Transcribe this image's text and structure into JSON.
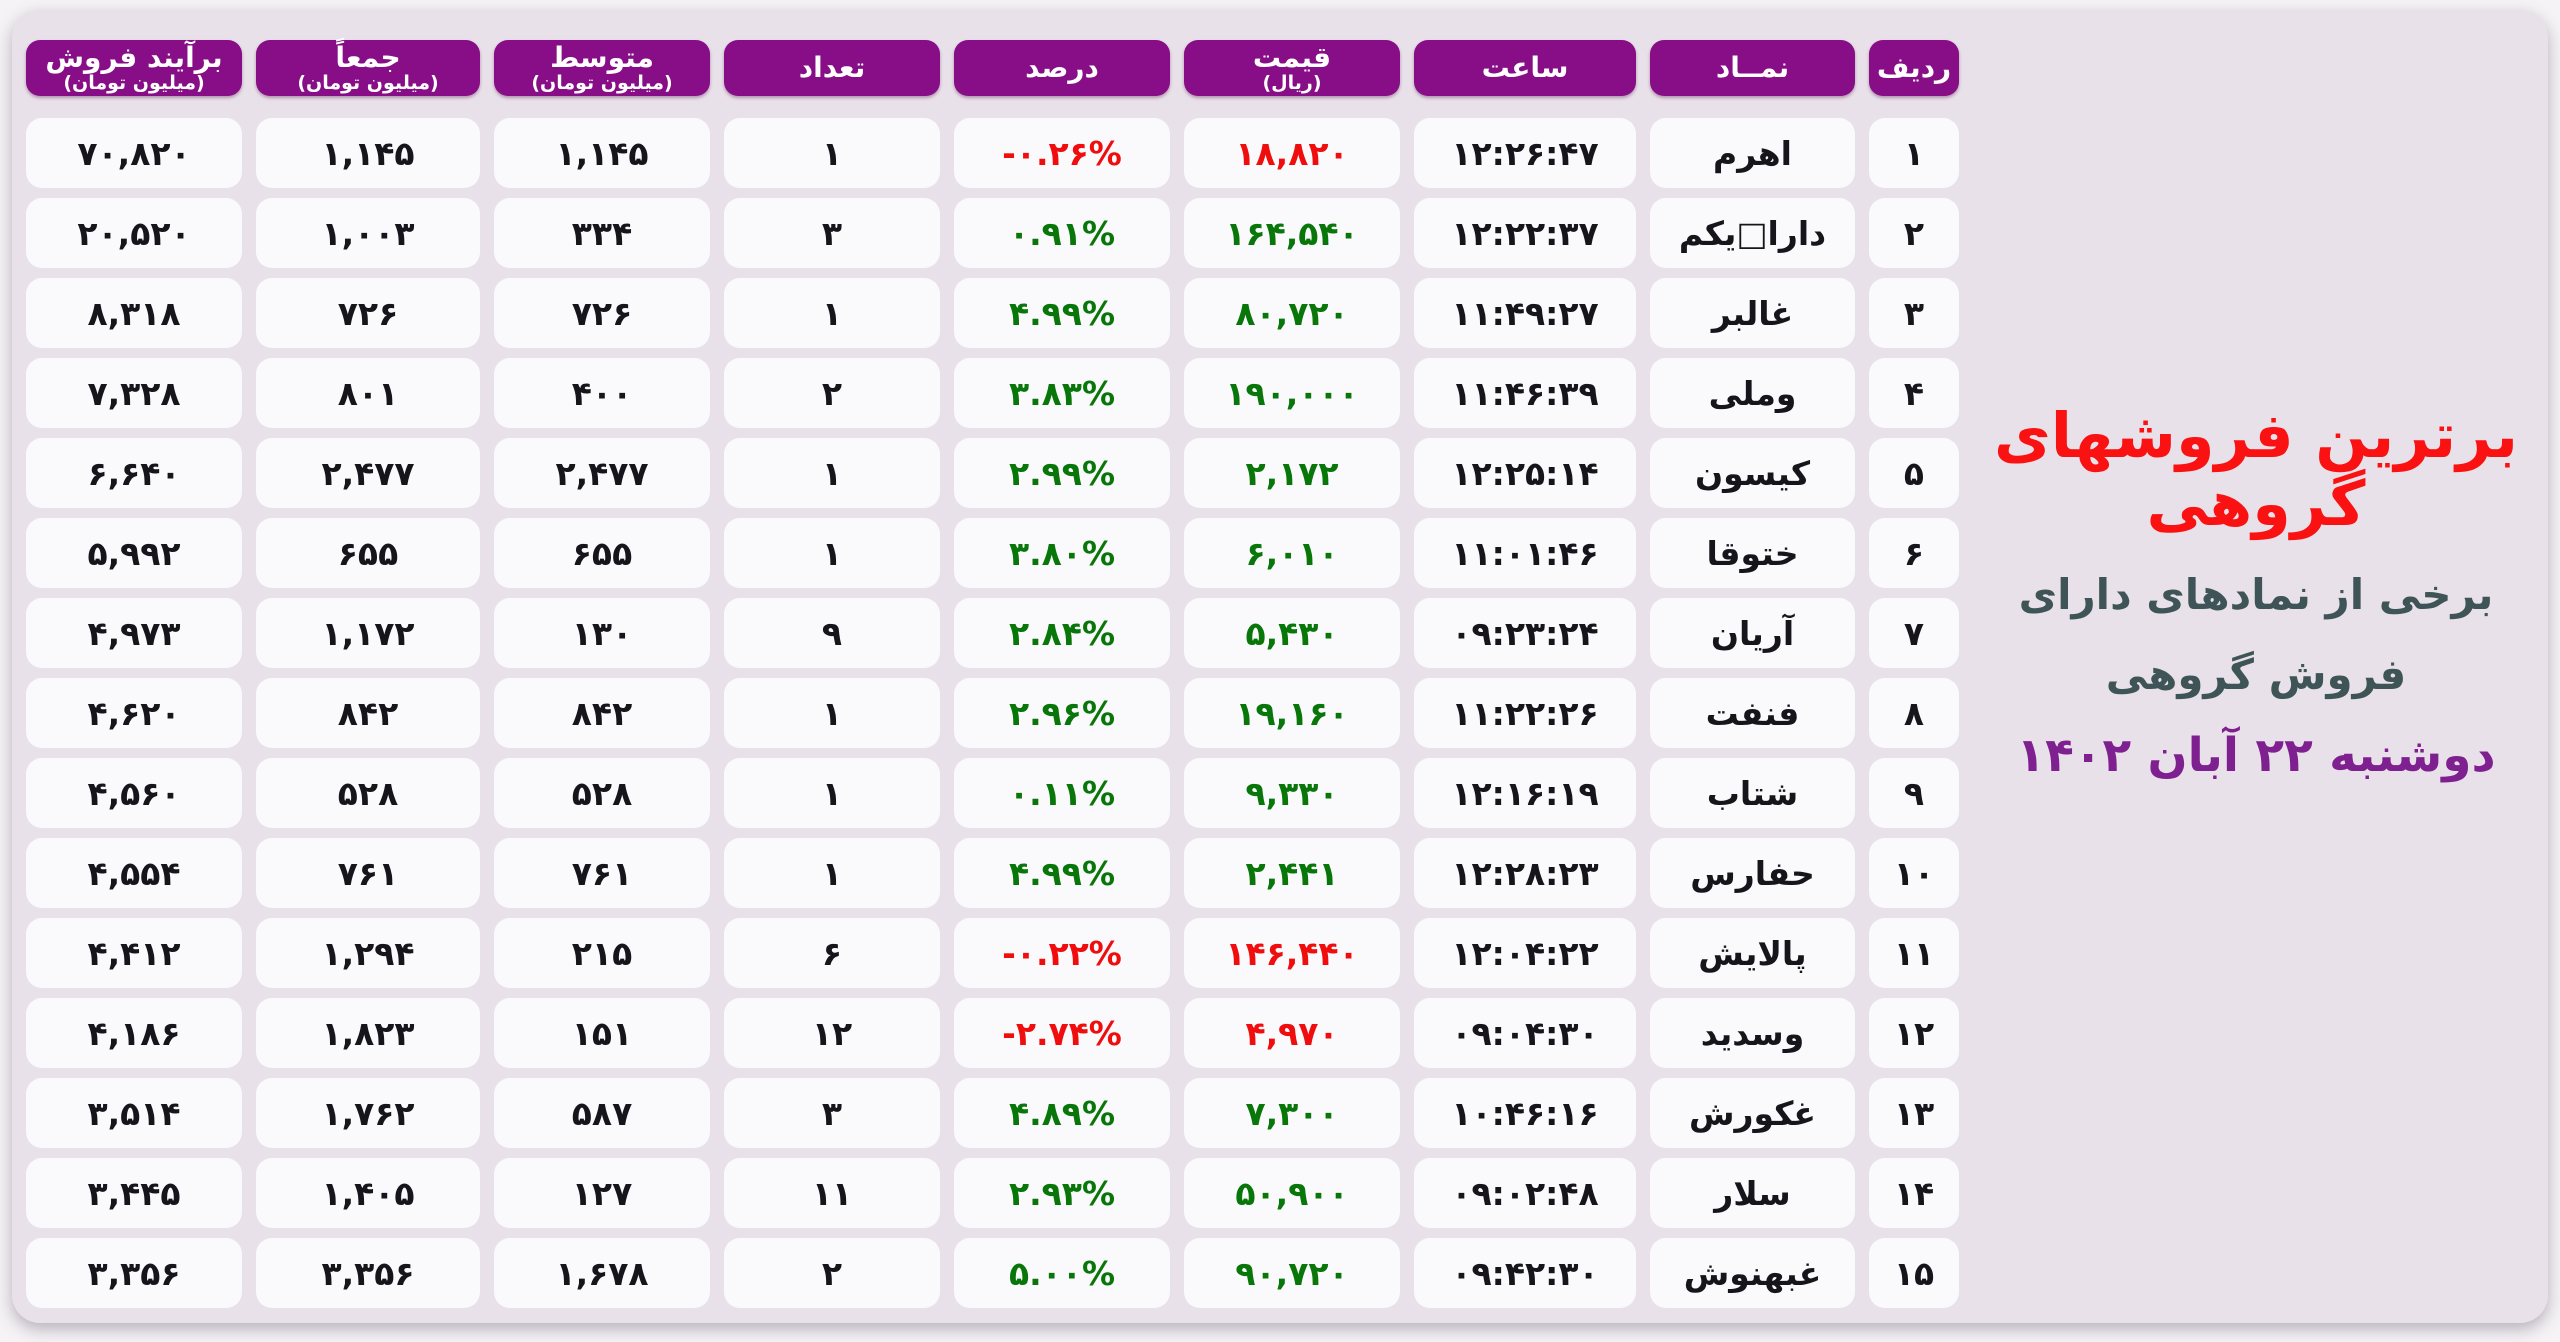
{
  "title_panel": {
    "title": "برترین فروشهای گروهی",
    "subtitle_line1": "برخی از نمادهای دارای",
    "subtitle_line2": "فروش گروهی",
    "date": "دوشنبه ۲۲ آبان ۱۴۰۲"
  },
  "chart_data": {
    "type": "table",
    "title": "برترین فروشهای گروهی",
    "columns": [
      {
        "key": "rank",
        "label": "ردیف",
        "sub": ""
      },
      {
        "key": "symbol",
        "label": "نمــاد",
        "sub": ""
      },
      {
        "key": "time",
        "label": "ساعت",
        "sub": ""
      },
      {
        "key": "price",
        "label": "قیمت",
        "sub": "(ریال)"
      },
      {
        "key": "percent",
        "label": "درصد",
        "sub": ""
      },
      {
        "key": "count",
        "label": "تعداد",
        "sub": ""
      },
      {
        "key": "average",
        "label": "متوسط",
        "sub": "(میلیون تومان)"
      },
      {
        "key": "sum",
        "label": "جمعاً",
        "sub": "(میلیون تومان)"
      },
      {
        "key": "proceeds",
        "label": "برآیند فروش",
        "sub": "(میلیون تومان)"
      }
    ],
    "rows": [
      {
        "rank": 1,
        "rank_fa": "۱",
        "symbol": "اهرم",
        "time_fa": "۱۲:۲۶:۴۷",
        "price": 18820,
        "price_fa": "۱۸,۸۲۰",
        "percent": -0.26,
        "percent_fa": "-۰.۲۶%",
        "count": 1,
        "count_fa": "۱",
        "average": 1145,
        "avg_fa": "۱,۱۴۵",
        "sum": 1145,
        "total_fa": "۱,۱۴۵",
        "proceeds": 70820,
        "proceeds_fa": "۷۰,۸۲۰",
        "trend": "down"
      },
      {
        "rank": 2,
        "rank_fa": "۲",
        "symbol": "دارا□یکم",
        "time_fa": "۱۲:۲۲:۳۷",
        "price": 164540,
        "price_fa": "۱۶۴,۵۴۰",
        "percent": 0.91,
        "percent_fa": "۰.۹۱%",
        "count": 3,
        "count_fa": "۳",
        "average": 334,
        "avg_fa": "۳۳۴",
        "sum": 1003,
        "total_fa": "۱,۰۰۳",
        "proceeds": 20520,
        "proceeds_fa": "۲۰,۵۲۰",
        "trend": "up"
      },
      {
        "rank": 3,
        "rank_fa": "۳",
        "symbol": "غالبر",
        "time_fa": "۱۱:۴۹:۲۷",
        "price": 80720,
        "price_fa": "۸۰,۷۲۰",
        "percent": 4.99,
        "percent_fa": "۴.۹۹%",
        "count": 1,
        "count_fa": "۱",
        "average": 726,
        "avg_fa": "۷۲۶",
        "sum": 726,
        "total_fa": "۷۲۶",
        "proceeds": 8318,
        "proceeds_fa": "۸,۳۱۸",
        "trend": "up"
      },
      {
        "rank": 4,
        "rank_fa": "۴",
        "symbol": "وملی",
        "time_fa": "۱۱:۴۶:۳۹",
        "price": 190000,
        "price_fa": "۱۹۰,۰۰۰",
        "percent": 3.83,
        "percent_fa": "۳.۸۳%",
        "count": 2,
        "count_fa": "۲",
        "average": 400,
        "avg_fa": "۴۰۰",
        "sum": 801,
        "total_fa": "۸۰۱",
        "proceeds": 7328,
        "proceeds_fa": "۷,۳۲۸",
        "trend": "up"
      },
      {
        "rank": 5,
        "rank_fa": "۵",
        "symbol": "کیسون",
        "time_fa": "۱۲:۲۵:۱۴",
        "price": 2172,
        "price_fa": "۲,۱۷۲",
        "percent": 2.99,
        "percent_fa": "۲.۹۹%",
        "count": 1,
        "count_fa": "۱",
        "average": 2477,
        "avg_fa": "۲,۴۷۷",
        "sum": 2477,
        "total_fa": "۲,۴۷۷",
        "proceeds": 6640,
        "proceeds_fa": "۶,۶۴۰",
        "trend": "up"
      },
      {
        "rank": 6,
        "rank_fa": "۶",
        "symbol": "ختوقا",
        "time_fa": "۱۱:۰۱:۴۶",
        "price": 6010,
        "price_fa": "۶,۰۱۰",
        "percent": 3.8,
        "percent_fa": "۳.۸۰%",
        "count": 1,
        "count_fa": "۱",
        "average": 655,
        "avg_fa": "۶۵۵",
        "sum": 655,
        "total_fa": "۶۵۵",
        "proceeds": 5992,
        "proceeds_fa": "۵,۹۹۲",
        "trend": "up"
      },
      {
        "rank": 7,
        "rank_fa": "۷",
        "symbol": "آریان",
        "time_fa": "۰۹:۲۳:۲۴",
        "price": 5430,
        "price_fa": "۵,۴۳۰",
        "percent": 2.84,
        "percent_fa": "۲.۸۴%",
        "count": 9,
        "count_fa": "۹",
        "average": 130,
        "avg_fa": "۱۳۰",
        "sum": 1172,
        "total_fa": "۱,۱۷۲",
        "proceeds": 4973,
        "proceeds_fa": "۴,۹۷۳",
        "trend": "up"
      },
      {
        "rank": 8,
        "rank_fa": "۸",
        "symbol": "فنفت",
        "time_fa": "۱۱:۲۲:۲۶",
        "price": 19160,
        "price_fa": "۱۹,۱۶۰",
        "percent": 2.96,
        "percent_fa": "۲.۹۶%",
        "count": 1,
        "count_fa": "۱",
        "average": 842,
        "avg_fa": "۸۴۲",
        "sum": 842,
        "total_fa": "۸۴۲",
        "proceeds": 4620,
        "proceeds_fa": "۴,۶۲۰",
        "trend": "up"
      },
      {
        "rank": 9,
        "rank_fa": "۹",
        "symbol": "شتاب",
        "time_fa": "۱۲:۱۶:۱۹",
        "price": 9330,
        "price_fa": "۹,۳۳۰",
        "percent": 0.11,
        "percent_fa": "۰.۱۱%",
        "count": 1,
        "count_fa": "۱",
        "average": 528,
        "avg_fa": "۵۲۸",
        "sum": 528,
        "total_fa": "۵۲۸",
        "proceeds": 4560,
        "proceeds_fa": "۴,۵۶۰",
        "trend": "up"
      },
      {
        "rank": 10,
        "rank_fa": "۱۰",
        "symbol": "حفارس",
        "time_fa": "۱۲:۲۸:۲۳",
        "price": 2441,
        "price_fa": "۲,۴۴۱",
        "percent": 4.99,
        "percent_fa": "۴.۹۹%",
        "count": 1,
        "count_fa": "۱",
        "average": 761,
        "avg_fa": "۷۶۱",
        "sum": 761,
        "total_fa": "۷۶۱",
        "proceeds": 4554,
        "proceeds_fa": "۴,۵۵۴",
        "trend": "up"
      },
      {
        "rank": 11,
        "rank_fa": "۱۱",
        "symbol": "پالایش",
        "time_fa": "۱۲:۰۴:۲۲",
        "price": 146440,
        "price_fa": "۱۴۶,۴۴۰",
        "percent": -0.22,
        "percent_fa": "-۰.۲۲%",
        "count": 6,
        "count_fa": "۶",
        "average": 215,
        "avg_fa": "۲۱۵",
        "sum": 1294,
        "total_fa": "۱,۲۹۴",
        "proceeds": 4412,
        "proceeds_fa": "۴,۴۱۲",
        "trend": "down"
      },
      {
        "rank": 12,
        "rank_fa": "۱۲",
        "symbol": "وسدید",
        "time_fa": "۰۹:۰۴:۳۰",
        "price": 4970,
        "price_fa": "۴,۹۷۰",
        "percent": -2.74,
        "percent_fa": "-۲.۷۴%",
        "count": 12,
        "count_fa": "۱۲",
        "average": 151,
        "avg_fa": "۱۵۱",
        "sum": 1823,
        "total_fa": "۱,۸۲۳",
        "proceeds": 4186,
        "proceeds_fa": "۴,۱۸۶",
        "trend": "down"
      },
      {
        "rank": 13,
        "rank_fa": "۱۳",
        "symbol": "غکورش",
        "time_fa": "۱۰:۴۶:۱۶",
        "price": 7300,
        "price_fa": "۷,۳۰۰",
        "percent": 4.89,
        "percent_fa": "۴.۸۹%",
        "count": 3,
        "count_fa": "۳",
        "average": 587,
        "avg_fa": "۵۸۷",
        "sum": 1762,
        "total_fa": "۱,۷۶۲",
        "proceeds": 3514,
        "proceeds_fa": "۳,۵۱۴",
        "trend": "up"
      },
      {
        "rank": 14,
        "rank_fa": "۱۴",
        "symbol": "سلار",
        "time_fa": "۰۹:۰۲:۴۸",
        "price": 50900,
        "price_fa": "۵۰,۹۰۰",
        "percent": 2.93,
        "percent_fa": "۲.۹۳%",
        "count": 11,
        "count_fa": "۱۱",
        "average": 127,
        "avg_fa": "۱۲۷",
        "sum": 1405,
        "total_fa": "۱,۴۰۵",
        "proceeds": 3445,
        "proceeds_fa": "۳,۴۴۵",
        "trend": "up"
      },
      {
        "rank": 15,
        "rank_fa": "۱۵",
        "symbol": "غبهنوش",
        "time_fa": "۰۹:۴۲:۳۰",
        "price": 90720,
        "price_fa": "۹۰,۷۲۰",
        "percent": 5.0,
        "percent_fa": "۵.۰۰%",
        "count": 2,
        "count_fa": "۲",
        "average": 1678,
        "avg_fa": "۱,۶۷۸",
        "sum": 3356,
        "total_fa": "۳,۳۵۶",
        "proceeds": 3356,
        "proceeds_fa": "۳,۳۵۶",
        "trend": "up"
      }
    ]
  },
  "colors": {
    "page_bg": "#f5f3f6",
    "card_bg": "#e9e1e9",
    "cell_bg": "#fafafd",
    "header_bg": "#870e87",
    "header_text": "#ffffff",
    "positive": "#087608",
    "negative": "#ef0d0d",
    "title_red": "#fa1111",
    "subtitle_teal": "#3f5456",
    "date_purple": "#7f2090",
    "text_dark": "#15151b"
  }
}
